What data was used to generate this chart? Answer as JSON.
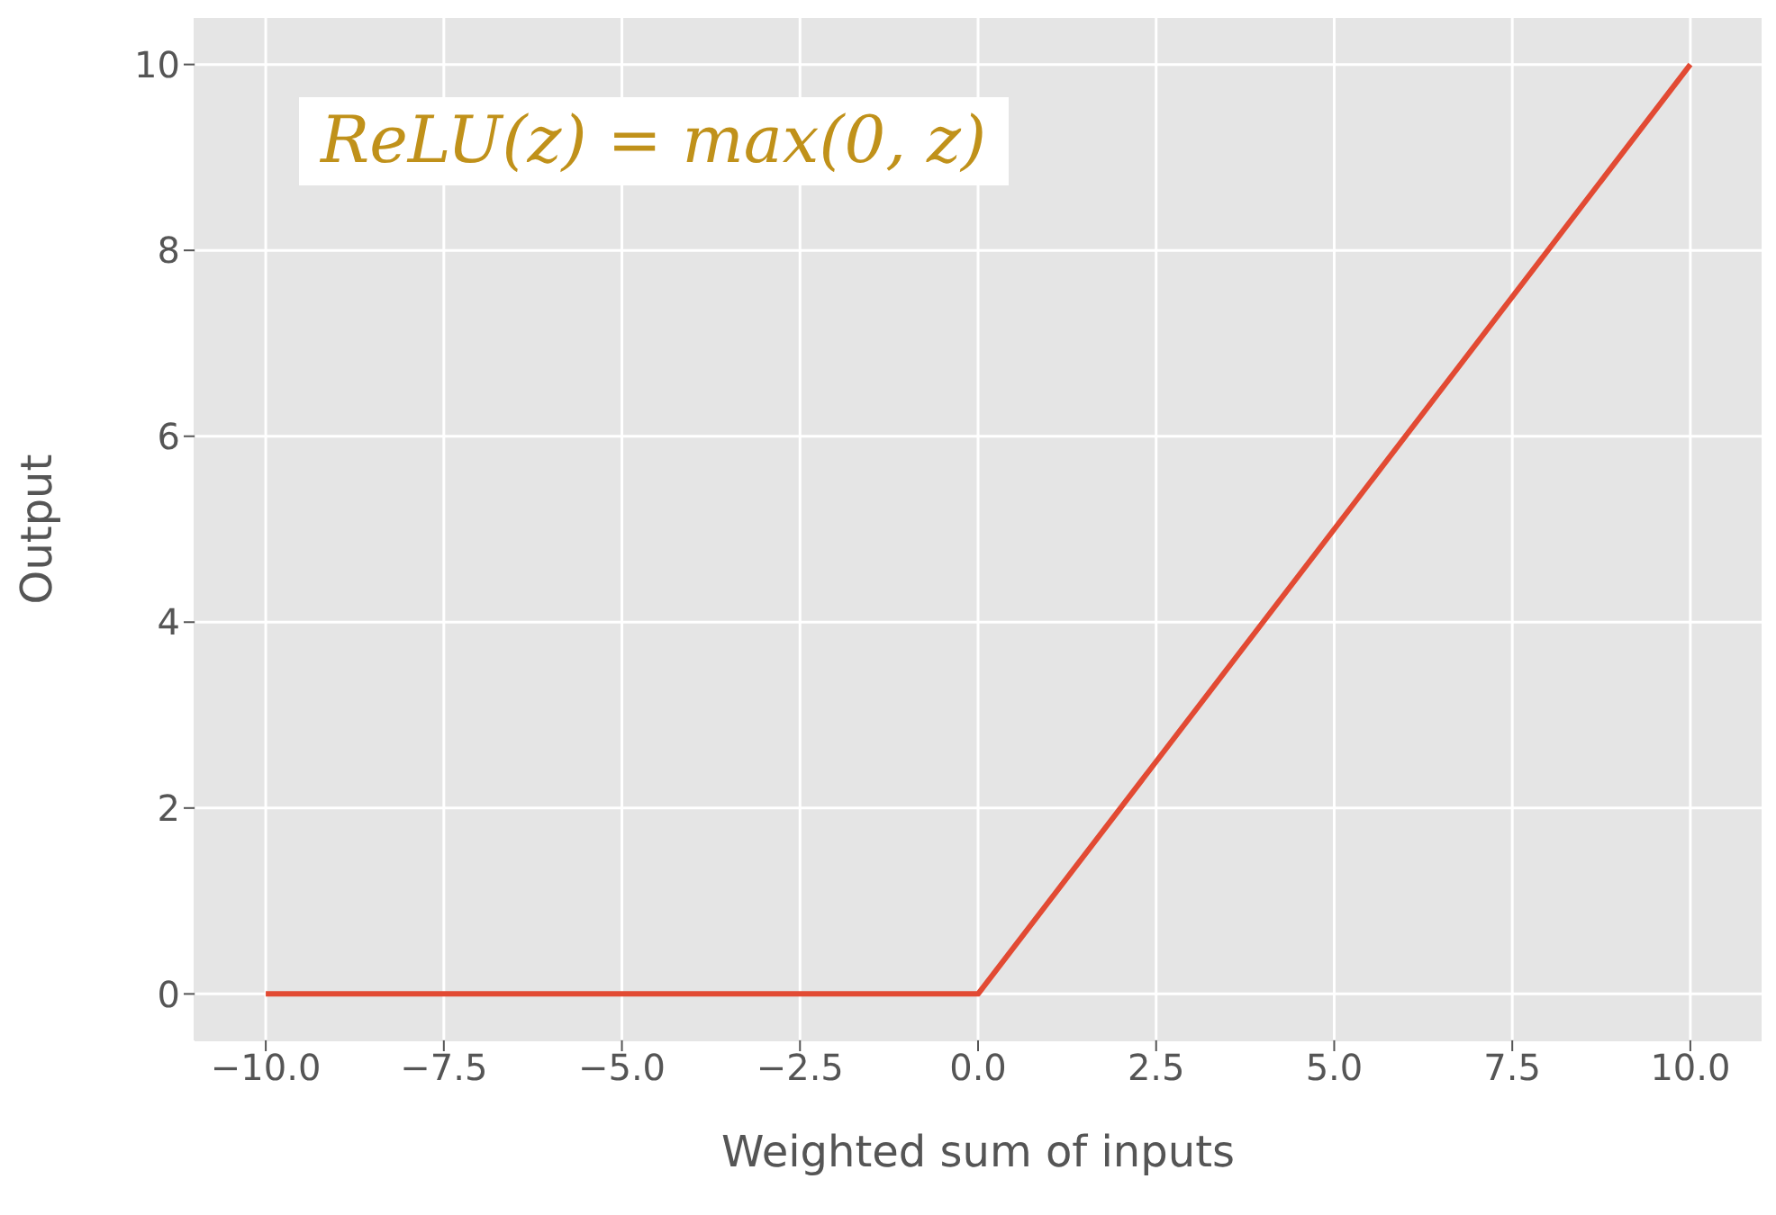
{
  "chart_data": {
    "type": "line",
    "xlabel": "Weighted sum of inputs",
    "ylabel": "Output",
    "annotations": [
      "ReLU(z) = max(0, z)"
    ],
    "x": [
      -10,
      0,
      10
    ],
    "series": [
      {
        "color": "#e24a33",
        "values": [
          0,
          0,
          10
        ]
      }
    ],
    "xlim": [
      -11,
      11
    ],
    "ylim": [
      -0.5,
      10.5
    ],
    "xticks": [
      {
        "value": -10,
        "label": "−10.0"
      },
      {
        "value": -7.5,
        "label": "−7.5"
      },
      {
        "value": -5,
        "label": "−5.0"
      },
      {
        "value": -2.5,
        "label": "−2.5"
      },
      {
        "value": 0,
        "label": "0.0"
      },
      {
        "value": 2.5,
        "label": "2.5"
      },
      {
        "value": 5,
        "label": "5.0"
      },
      {
        "value": 7.5,
        "label": "7.5"
      },
      {
        "value": 10,
        "label": "10.0"
      }
    ],
    "yticks": [
      0,
      2,
      4,
      6,
      8,
      10
    ],
    "grid": true,
    "legend": false,
    "marker": "none",
    "line_style": "solid"
  }
}
